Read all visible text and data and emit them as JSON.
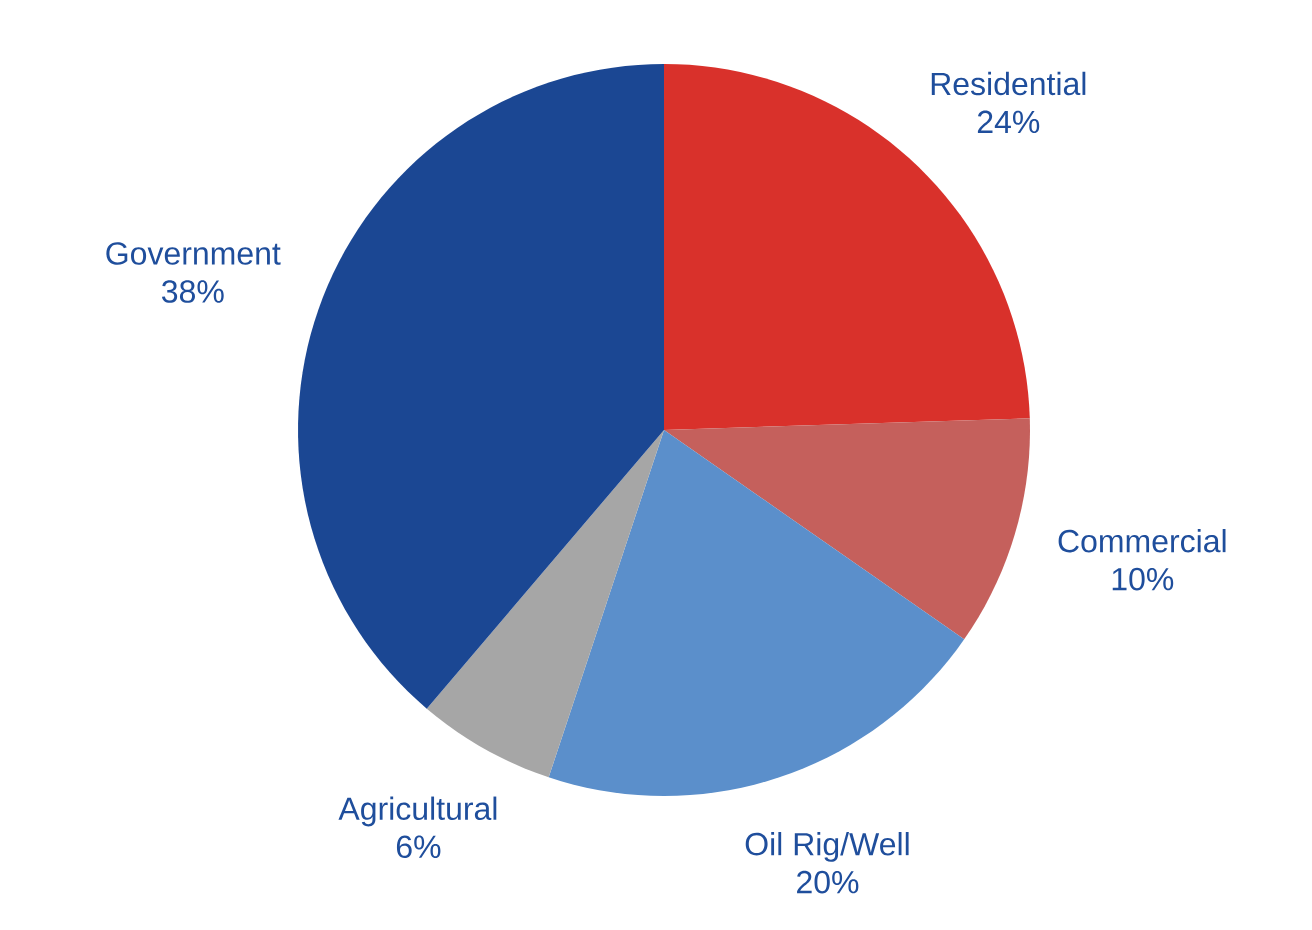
{
  "chart_data": {
    "type": "pie",
    "categories": [
      "Residential",
      "Commercial",
      "Oil Rig/Well",
      "Agricultural",
      "Government"
    ],
    "values": [
      24,
      10,
      20,
      6,
      38
    ],
    "value_labels": [
      "24%",
      "10%",
      "20%",
      "6%",
      "38%"
    ],
    "colors": [
      "#d9312b",
      "#c5605c",
      "#5b8fcb",
      "#a6a6a6",
      "#1b4793"
    ]
  }
}
